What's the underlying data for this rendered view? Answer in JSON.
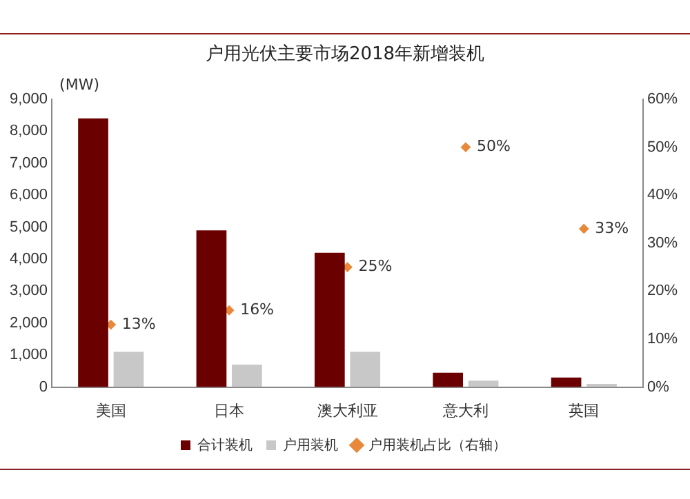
{
  "chart_data": {
    "type": "bar",
    "title": "户用光伏主要市场2018年新增装机",
    "ylabel": "(MW)",
    "categories": [
      "美国",
      "日本",
      "澳大利亚",
      "意大利",
      "英国"
    ],
    "series": [
      {
        "name": "合计装机",
        "color": "#6b0000",
        "values": [
          8400,
          4900,
          4200,
          450,
          300
        ]
      },
      {
        "name": "户用装机",
        "color": "#c8c8c8",
        "values": [
          1100,
          700,
          1100,
          200,
          100
        ]
      },
      {
        "name": "户用装机占比（右轴）",
        "type": "scatter",
        "axis": "y2",
        "color": "#e8883a",
        "x": [
          "美国",
          "日本",
          "澳大利亚",
          "意大利",
          "英国"
        ],
        "values": [
          13,
          16,
          25,
          50,
          33
        ],
        "value_labels": [
          "13%",
          "16%",
          "25%",
          "50%",
          "33%"
        ]
      }
    ],
    "ylim": [
      0,
      9000
    ],
    "yticks": [
      0,
      {
        "value": 1000,
        "label": "1,000"
      },
      {
        "value": 2000,
        "label": "2,000"
      },
      {
        "value": 3000,
        "label": "3,000"
      },
      {
        "value": 4000,
        "label": "4,000"
      },
      {
        "value": 5000,
        "label": "5,000"
      },
      {
        "value": 6000,
        "label": "6,000"
      },
      {
        "value": 7000,
        "label": "7,000"
      },
      {
        "value": 8000,
        "label": "8,000"
      },
      {
        "value": 9000,
        "label": "9,000"
      }
    ],
    "y2lim": [
      0,
      60
    ],
    "y2ticks": [
      {
        "value": 0,
        "label": "0%"
      },
      {
        "value": 10,
        "label": "10%"
      },
      {
        "value": 20,
        "label": "20%"
      },
      {
        "value": 30,
        "label": "30%"
      },
      {
        "value": 40,
        "label": "40%"
      },
      {
        "value": 50,
        "label": "50%"
      },
      {
        "value": 60,
        "label": "60%"
      }
    ],
    "grid": false,
    "legend": "bottom",
    "marker": "diamond"
  }
}
